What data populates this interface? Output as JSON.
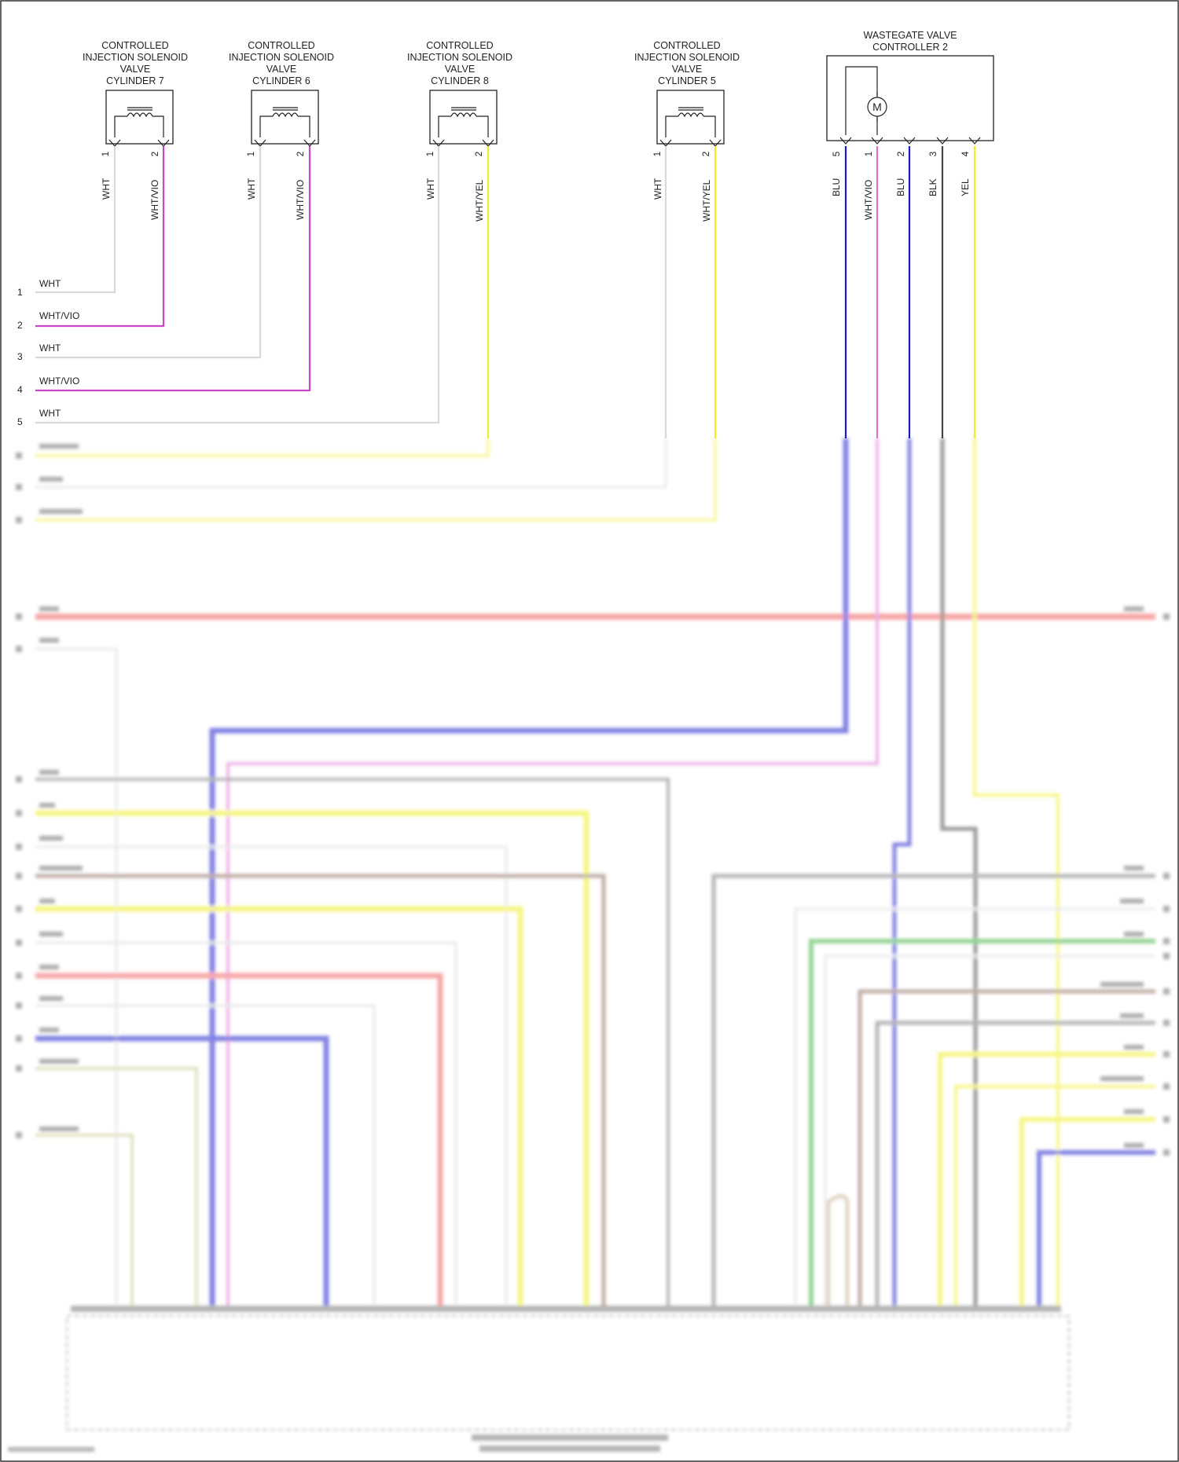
{
  "components": {
    "inj7": {
      "title": [
        "CONTROLLED",
        "INJECTION SOLENOID",
        "VALVE",
        "CYLINDER 7"
      ],
      "pins": [
        "1",
        "2"
      ],
      "wires": [
        "WHT",
        "WHT/VIO"
      ]
    },
    "inj6": {
      "title": [
        "CONTROLLED",
        "INJECTION SOLENOID",
        "VALVE",
        "CYLINDER 6"
      ],
      "pins": [
        "1",
        "2"
      ],
      "wires": [
        "WHT",
        "WHT/VIO"
      ]
    },
    "inj8": {
      "title": [
        "CONTROLLED",
        "INJECTION SOLENOID",
        "VALVE",
        "CYLINDER 8"
      ],
      "pins": [
        "1",
        "2"
      ],
      "wires": [
        "WHT",
        "WHT/YEL"
      ]
    },
    "inj5": {
      "title": [
        "CONTROLLED",
        "INJECTION SOLENOID",
        "VALVE",
        "CYLINDER 5"
      ],
      "pins": [
        "1",
        "2"
      ],
      "wires": [
        "WHT",
        "WHT/YEL"
      ]
    },
    "wastegate": {
      "title": [
        "WASTEGATE VALVE",
        "CONTROLLER 2"
      ],
      "motor_symbol": "M",
      "pins": [
        "5",
        "1",
        "2",
        "3",
        "4"
      ],
      "wires": [
        "BLU",
        "WHT/VIO",
        "BLU",
        "BLK",
        "YEL"
      ]
    }
  },
  "rows": [
    {
      "num": "1",
      "label": "WHT"
    },
    {
      "num": "2",
      "label": "WHT/VIO"
    },
    {
      "num": "3",
      "label": "WHT"
    },
    {
      "num": "4",
      "label": "WHT/VIO"
    },
    {
      "num": "5",
      "label": "WHT"
    }
  ],
  "colors": {
    "WHT": "#d8d8d8",
    "VIO": "#cc44cc",
    "YEL": "#eeee22",
    "BLU": "#1a1acc",
    "BLK": "#444444",
    "WHT_VIO_WG": "#e070d0",
    "RED": "#f06060",
    "GRN": "#40b040",
    "BRN": "#8a6a5a",
    "TAN": "#c8b090",
    "OLIVE": "#c8c890"
  },
  "icons": [
    "solenoid-coil-icon",
    "motor-icon",
    "connector-pin-icon"
  ]
}
